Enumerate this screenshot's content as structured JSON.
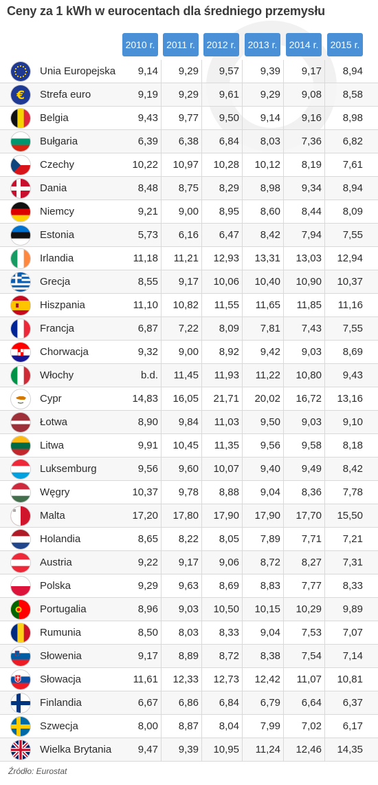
{
  "chart_data": {
    "type": "table",
    "title": "Ceny za 1 kWh w eurocentach dla średniego przemysłu",
    "columns": [
      "2010 r.",
      "2011 r.",
      "2012 r.",
      "2013 r.",
      "2014 r.",
      "2015 r."
    ],
    "rows": [
      {
        "country": "Unia Europejska",
        "flag": "eu-flag-icon",
        "values": [
          "9,14",
          "9,29",
          "9,57",
          "9,39",
          "9,17",
          "8,94"
        ]
      },
      {
        "country": "Strefa euro",
        "flag": "euro-sign-icon",
        "values": [
          "9,19",
          "9,29",
          "9,61",
          "9,29",
          "9,08",
          "8,58"
        ]
      },
      {
        "country": "Belgia",
        "flag": "belgium-flag-icon",
        "values": [
          "9,43",
          "9,77",
          "9,50",
          "9,14",
          "9,16",
          "8,98"
        ]
      },
      {
        "country": "Bułgaria",
        "flag": "bulgaria-flag-icon",
        "values": [
          "6,39",
          "6,38",
          "6,84",
          "8,03",
          "7,36",
          "6,82"
        ]
      },
      {
        "country": "Czechy",
        "flag": "czechia-flag-icon",
        "values": [
          "10,22",
          "10,97",
          "10,28",
          "10,12",
          "8,19",
          "7,61"
        ]
      },
      {
        "country": "Dania",
        "flag": "denmark-flag-icon",
        "values": [
          "8,48",
          "8,75",
          "8,29",
          "8,98",
          "9,34",
          "8,94"
        ]
      },
      {
        "country": "Niemcy",
        "flag": "germany-flag-icon",
        "values": [
          "9,21",
          "9,00",
          "8,95",
          "8,60",
          "8,44",
          "8,09"
        ]
      },
      {
        "country": "Estonia",
        "flag": "estonia-flag-icon",
        "values": [
          "5,73",
          "6,16",
          "6,47",
          "8,42",
          "7,94",
          "7,55"
        ]
      },
      {
        "country": "Irlandia",
        "flag": "ireland-flag-icon",
        "values": [
          "11,18",
          "11,21",
          "12,93",
          "13,31",
          "13,03",
          "12,94"
        ]
      },
      {
        "country": "Grecja",
        "flag": "greece-flag-icon",
        "values": [
          "8,55",
          "9,17",
          "10,06",
          "10,40",
          "10,90",
          "10,37"
        ]
      },
      {
        "country": "Hiszpania",
        "flag": "spain-flag-icon",
        "values": [
          "11,10",
          "10,82",
          "11,55",
          "11,65",
          "11,85",
          "11,16"
        ]
      },
      {
        "country": "Francja",
        "flag": "france-flag-icon",
        "values": [
          "6,87",
          "7,22",
          "8,09",
          "7,81",
          "7,43",
          "7,55"
        ]
      },
      {
        "country": "Chorwacja",
        "flag": "croatia-flag-icon",
        "values": [
          "9,32",
          "9,00",
          "8,92",
          "9,42",
          "9,03",
          "8,69"
        ]
      },
      {
        "country": "Włochy",
        "flag": "italy-flag-icon",
        "values": [
          "b.d.",
          "11,45",
          "11,93",
          "11,22",
          "10,80",
          "9,43"
        ]
      },
      {
        "country": "Cypr",
        "flag": "cyprus-flag-icon",
        "values": [
          "14,83",
          "16,05",
          "21,71",
          "20,02",
          "16,72",
          "13,16"
        ]
      },
      {
        "country": "Łotwa",
        "flag": "latvia-flag-icon",
        "values": [
          "8,90",
          "9,84",
          "11,03",
          "9,50",
          "9,03",
          "9,10"
        ]
      },
      {
        "country": "Litwa",
        "flag": "lithuania-flag-icon",
        "values": [
          "9,91",
          "10,45",
          "11,35",
          "9,56",
          "9,58",
          "8,18"
        ]
      },
      {
        "country": "Luksemburg",
        "flag": "luxembourg-flag-icon",
        "values": [
          "9,56",
          "9,60",
          "10,07",
          "9,40",
          "9,49",
          "8,42"
        ]
      },
      {
        "country": "Węgry",
        "flag": "hungary-flag-icon",
        "values": [
          "10,37",
          "9,78",
          "8,88",
          "9,04",
          "8,36",
          "7,78"
        ]
      },
      {
        "country": "Malta",
        "flag": "malta-flag-icon",
        "values": [
          "17,20",
          "17,80",
          "17,90",
          "17,90",
          "17,70",
          "15,50"
        ]
      },
      {
        "country": "Holandia",
        "flag": "netherlands-flag-icon",
        "values": [
          "8,65",
          "8,22",
          "8,05",
          "7,89",
          "7,71",
          "7,21"
        ]
      },
      {
        "country": "Austria",
        "flag": "austria-flag-icon",
        "values": [
          "9,22",
          "9,17",
          "9,06",
          "8,72",
          "8,27",
          "7,31"
        ]
      },
      {
        "country": "Polska",
        "flag": "poland-flag-icon",
        "values": [
          "9,29",
          "9,63",
          "8,69",
          "8,83",
          "7,77",
          "8,33"
        ]
      },
      {
        "country": "Portugalia",
        "flag": "portugal-flag-icon",
        "values": [
          "8,96",
          "9,03",
          "10,50",
          "10,15",
          "10,29",
          "9,89"
        ]
      },
      {
        "country": "Rumunia",
        "flag": "romania-flag-icon",
        "values": [
          "8,50",
          "8,03",
          "8,33",
          "9,04",
          "7,53",
          "7,07"
        ]
      },
      {
        "country": "Słowenia",
        "flag": "slovenia-flag-icon",
        "values": [
          "9,17",
          "8,89",
          "8,72",
          "8,38",
          "7,54",
          "7,14"
        ]
      },
      {
        "country": "Słowacja",
        "flag": "slovakia-flag-icon",
        "values": [
          "11,61",
          "12,33",
          "12,73",
          "12,42",
          "11,07",
          "10,81"
        ]
      },
      {
        "country": "Finlandia",
        "flag": "finland-flag-icon",
        "values": [
          "6,67",
          "6,86",
          "6,84",
          "6,79",
          "6,64",
          "6,37"
        ]
      },
      {
        "country": "Szwecja",
        "flag": "sweden-flag-icon",
        "values": [
          "8,00",
          "8,87",
          "8,04",
          "7,99",
          "7,02",
          "6,17"
        ]
      },
      {
        "country": "Wielka Brytania",
        "flag": "uk-flag-icon",
        "values": [
          "9,47",
          "9,39",
          "10,95",
          "11,24",
          "12,46",
          "14,35"
        ]
      }
    ],
    "source": "Źródło: Eurostat"
  },
  "colors": {
    "header_bg": "#4a90d6",
    "title": "#3a3a3a"
  }
}
